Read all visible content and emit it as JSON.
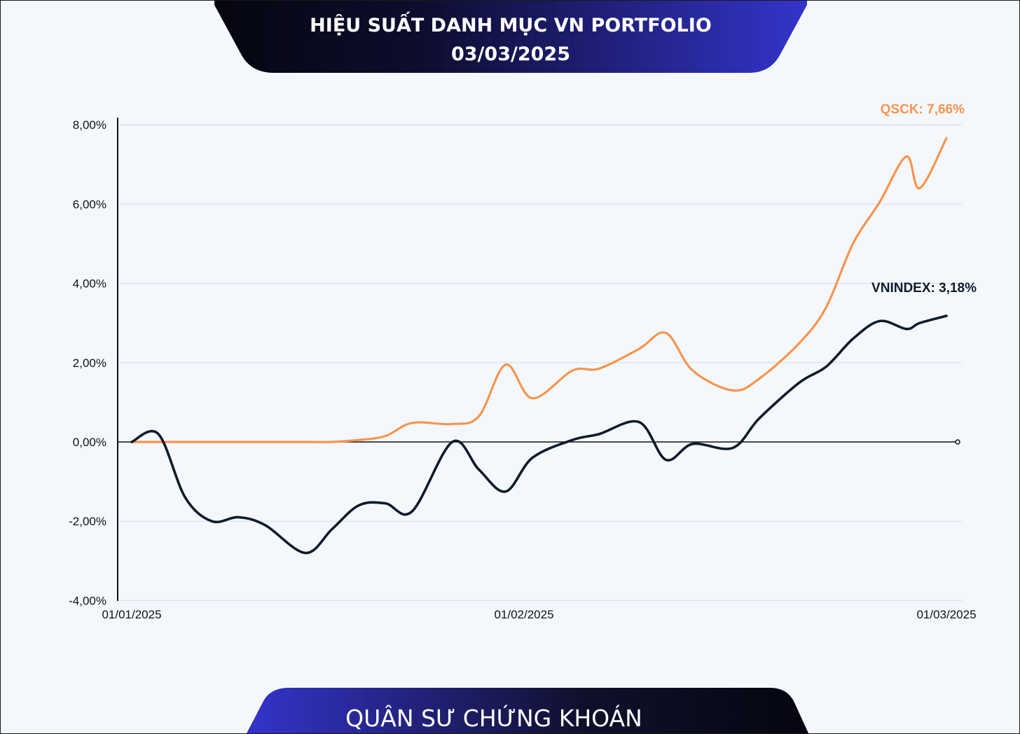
{
  "header": {
    "title_line1": "HIỆU SUẤT DANH MỤC VN PORTFOLIO",
    "title_line2": "03/03/2025"
  },
  "footer": {
    "label": "QUÂN SƯ CHỨNG KHOÁN"
  },
  "colors": {
    "qsck": "#f7944d",
    "vnindex": "#0f1b2b",
    "banner_dark": "#05060f",
    "banner_blue": "#3434cc",
    "grid": "#d5dbe5",
    "background": "#f4f8fd"
  },
  "chart_data": {
    "type": "line",
    "x_ticks": [
      "01/01/2025",
      "01/02/2025",
      "01/03/2025"
    ],
    "y_ticks": [
      "8,00%",
      "6,00%",
      "4,00%",
      "2,00%",
      "0,00%",
      "-2,00%",
      "-4,00%"
    ],
    "ylim": [
      -4,
      8
    ],
    "xlim": [
      "01/01/2025",
      "01/03/2025"
    ],
    "grid": true,
    "series": [
      {
        "name": "QSCK",
        "end_label": "QSCK: 7,66%",
        "points": [
          [
            "01/01/2025",
            0.0
          ],
          [
            "03/01/2025",
            0.0
          ],
          [
            "05/01/2025",
            0.0
          ],
          [
            "07/01/2025",
            0.0
          ],
          [
            "09/01/2025",
            0.0
          ],
          [
            "11/01/2025",
            0.0
          ],
          [
            "14/01/2025",
            0.0
          ],
          [
            "16/01/2025",
            0.0
          ],
          [
            "18/01/2025",
            0.05
          ],
          [
            "20/01/2025",
            0.15
          ],
          [
            "22/01/2025",
            0.48
          ],
          [
            "25/01/2025",
            0.45
          ],
          [
            "27/01/2025",
            0.65
          ],
          [
            "29/01/2025",
            1.95
          ],
          [
            "31/01/2025",
            1.1
          ],
          [
            "03/02/2025",
            1.8
          ],
          [
            "05/02/2025",
            1.85
          ],
          [
            "08/02/2025",
            2.35
          ],
          [
            "10/02/2025",
            2.75
          ],
          [
            "12/02/2025",
            1.8
          ],
          [
            "15/02/2025",
            1.3
          ],
          [
            "17/02/2025",
            1.6
          ],
          [
            "20/02/2025",
            2.5
          ],
          [
            "22/02/2025",
            3.4
          ],
          [
            "24/02/2025",
            5.0
          ],
          [
            "26/02/2025",
            6.05
          ],
          [
            "28/02/2025",
            7.2
          ],
          [
            "01/03/2025",
            6.4
          ],
          [
            "03/03/2025",
            7.66
          ]
        ]
      },
      {
        "name": "VNINDEX",
        "end_label": "VNINDEX: 3,18%",
        "points": [
          [
            "01/01/2025",
            0.0
          ],
          [
            "03/01/2025",
            0.2
          ],
          [
            "05/01/2025",
            -1.4
          ],
          [
            "07/01/2025",
            -2.0
          ],
          [
            "09/01/2025",
            -1.9
          ],
          [
            "11/01/2025",
            -2.1
          ],
          [
            "14/01/2025",
            -2.8
          ],
          [
            "16/01/2025",
            -2.2
          ],
          [
            "18/01/2025",
            -1.6
          ],
          [
            "20/01/2025",
            -1.55
          ],
          [
            "22/01/2025",
            -1.75
          ],
          [
            "25/01/2025",
            0.0
          ],
          [
            "27/01/2025",
            -0.7
          ],
          [
            "29/01/2025",
            -1.25
          ],
          [
            "31/01/2025",
            -0.4
          ],
          [
            "03/02/2025",
            0.05
          ],
          [
            "05/02/2025",
            0.2
          ],
          [
            "08/02/2025",
            0.5
          ],
          [
            "10/02/2025",
            -0.45
          ],
          [
            "12/02/2025",
            -0.05
          ],
          [
            "15/02/2025",
            -0.15
          ],
          [
            "17/02/2025",
            0.6
          ],
          [
            "20/02/2025",
            1.5
          ],
          [
            "22/02/2025",
            1.9
          ],
          [
            "24/02/2025",
            2.6
          ],
          [
            "26/02/2025",
            3.05
          ],
          [
            "28/02/2025",
            2.85
          ],
          [
            "01/03/2025",
            3.0
          ],
          [
            "03/03/2025",
            3.18
          ]
        ]
      }
    ]
  }
}
